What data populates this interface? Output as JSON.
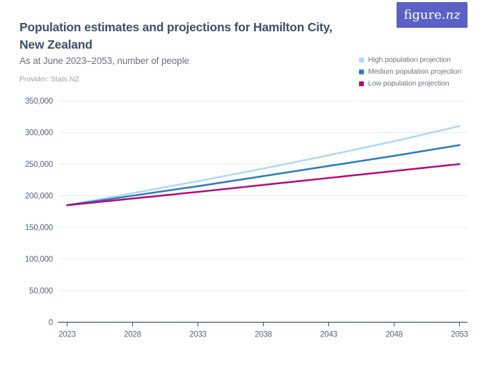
{
  "header": {
    "title_line1": "Population estimates and projections for Hamilton City,",
    "title_line2": "New Zealand",
    "subtitle": "As at June 2023–2053, number of people",
    "provider": "Provider: Stats NZ"
  },
  "logo": {
    "brand": "figure.",
    "brand_suffix": "nz"
  },
  "colors": {
    "logo_background": "#5b60c6",
    "title_text": "#3d5068",
    "axis": "#3e5170",
    "gridline": "#e9ebee",
    "tick_label": "#56627d",
    "high_series": "#aed9f4",
    "medium_series": "#2d7cc2",
    "low_series": "#b40c7c"
  },
  "legend": {
    "items": [
      {
        "label": "High population projection",
        "color": "#aed9f4"
      },
      {
        "label": "Medium population projection",
        "color": "#2d7cc2"
      },
      {
        "label": "Low population projection",
        "color": "#b40c7c"
      }
    ]
  },
  "chart_data": {
    "type": "line",
    "title": "Population estimates and projections for Hamilton City, New Zealand",
    "subtitle": "As at June 2023–2053, number of people",
    "xlabel": "",
    "ylabel": "number of people",
    "x": [
      2023,
      2028,
      2033,
      2038,
      2043,
      2048,
      2053
    ],
    "x_tick_labels": [
      "2023",
      "2028",
      "2033",
      "2038",
      "2043",
      "2048",
      "2053"
    ],
    "y_ticks": [
      0,
      50000,
      100000,
      150000,
      200000,
      250000,
      300000,
      350000
    ],
    "y_tick_labels": [
      "0",
      "50,000",
      "100,000",
      "150,000",
      "200,000",
      "250,000",
      "300,000",
      "350,000"
    ],
    "ylim": [
      0,
      350000
    ],
    "xlim": [
      2023,
      2053
    ],
    "grid": "horizontal",
    "legend_position": "top-right",
    "series": [
      {
        "name": "High population projection",
        "color": "#aed9f4",
        "values": [
          185000,
          204000,
          223000,
          243000,
          264000,
          286000,
          310000
        ]
      },
      {
        "name": "Medium population projection",
        "color": "#2d7cc2",
        "values": [
          185000,
          200000,
          215000,
          231000,
          247000,
          263000,
          280000
        ]
      },
      {
        "name": "Low population projection",
        "color": "#b40c7c",
        "values": [
          185000,
          195500,
          206000,
          217000,
          228000,
          239000,
          250000
        ]
      }
    ]
  }
}
